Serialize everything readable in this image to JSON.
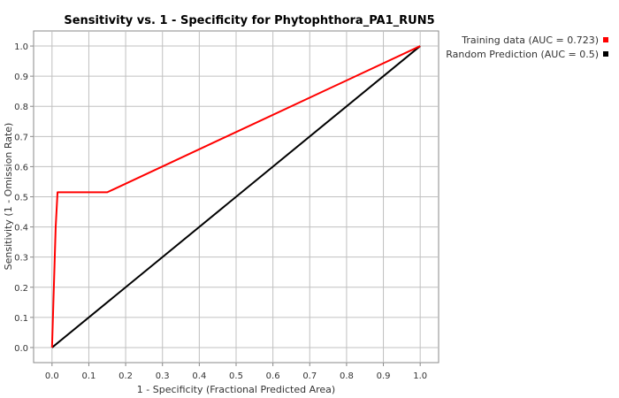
{
  "chart_data": {
    "type": "line",
    "title": "Sensitivity vs. 1 - Specificity for Phytophthora_PA1_RUN5",
    "xlabel": "1 - Specificity  (Fractional Predicted Area)",
    "ylabel": "Sensitivity  (1 - Omission Rate)",
    "xlim": [
      -0.05,
      1.05
    ],
    "ylim": [
      -0.05,
      1.05
    ],
    "xticks": [
      "0.0",
      "0.1",
      "0.2",
      "0.3",
      "0.4",
      "0.5",
      "0.6",
      "0.7",
      "0.8",
      "0.9",
      "1.0"
    ],
    "yticks": [
      "0.0",
      "0.1",
      "0.2",
      "0.3",
      "0.4",
      "0.5",
      "0.6",
      "0.7",
      "0.8",
      "0.9",
      "1.0"
    ],
    "grid": true,
    "legend_position": "right",
    "series": [
      {
        "name": "Training data (AUC = 0.723)",
        "color": "#ff0000",
        "x": [
          0.0,
          0.01,
          0.015,
          0.02,
          0.15,
          1.0
        ],
        "y": [
          0.0,
          0.4,
          0.515,
          0.515,
          0.515,
          1.0
        ]
      },
      {
        "name": "Random Prediction (AUC = 0.5)",
        "color": "#000000",
        "x": [
          0.0,
          1.0
        ],
        "y": [
          0.0,
          1.0
        ]
      }
    ]
  }
}
